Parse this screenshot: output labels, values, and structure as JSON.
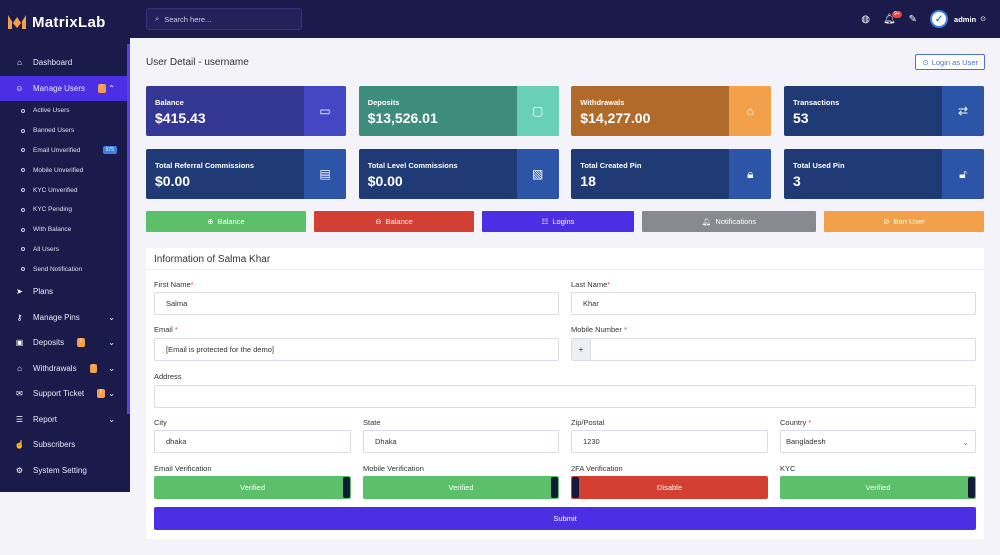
{
  "brand": {
    "name": "MatrixLab"
  },
  "search": {
    "placeholder": "Search here..."
  },
  "topbar": {
    "notification_count": "9+",
    "user_name": "admin"
  },
  "sidebar": {
    "items": [
      {
        "label": "Dashboard",
        "icon": "home-icon"
      },
      {
        "label": "Manage Users",
        "icon": "users-icon",
        "badge": "!",
        "active": true
      },
      {
        "label": "Plans",
        "icon": "send-icon"
      },
      {
        "label": "Manage Pins",
        "icon": "key-icon"
      },
      {
        "label": "Deposits",
        "icon": "wallet-icon",
        "badge": "!"
      },
      {
        "label": "Withdrawals",
        "icon": "bank-icon",
        "badge": "!"
      },
      {
        "label": "Support Ticket",
        "icon": "ticket-icon",
        "badge": "!"
      },
      {
        "label": "Report",
        "icon": "list-icon"
      },
      {
        "label": "Subscribers",
        "icon": "thumbs-up-icon"
      },
      {
        "label": "System Setting",
        "icon": "gear-icon"
      }
    ],
    "sub_items": [
      {
        "label": "Active Users"
      },
      {
        "label": "Banned Users"
      },
      {
        "label": "Email Unverified",
        "badge": "575"
      },
      {
        "label": "Mobile Unverified"
      },
      {
        "label": "KYC Unverified"
      },
      {
        "label": "KYC Pending"
      },
      {
        "label": "With Balance"
      },
      {
        "label": "All Users"
      },
      {
        "label": "Send Notification"
      }
    ]
  },
  "page": {
    "title": "User Detail - username",
    "login_as_label": "Login as User"
  },
  "stats": [
    {
      "label": "Balance",
      "value": "$415.43",
      "bg": "#343794",
      "icon_bg": "#4347c4",
      "icon": "money-icon"
    },
    {
      "label": "Deposits",
      "value": "$13,526.01",
      "bg": "#3e8c7c",
      "icon_bg": "#69cfb6",
      "icon": "wallet-icon"
    },
    {
      "label": "Withdrawals",
      "value": "$14,277.00",
      "bg": "#b06b2b",
      "icon_bg": "#f3a04a",
      "icon": "bank-icon"
    },
    {
      "label": "Transactions",
      "value": "53",
      "bg": "#1f3a75",
      "icon_bg": "#2c55a8",
      "icon": "exchange-icon"
    },
    {
      "label": "Total Referral Commissions",
      "value": "$0.00",
      "bg": "#1f3a75",
      "icon_bg": "#2c55a8",
      "icon": "card-icon"
    },
    {
      "label": "Total Level Commissions",
      "value": "$0.00",
      "bg": "#1f3a75",
      "icon_bg": "#2c55a8",
      "icon": "terminal-icon"
    },
    {
      "label": "Total Created Pin",
      "value": "18",
      "bg": "#1f3a75",
      "icon_bg": "#2c55a8",
      "icon": "lock-icon"
    },
    {
      "label": "Total Used Pin",
      "value": "3",
      "bg": "#1f3a75",
      "icon_bg": "#2c55a8",
      "icon": "unlock-icon"
    }
  ],
  "actions": [
    {
      "label": "Balance",
      "icon": "plus-circle-icon",
      "color": "#5cbf6a"
    },
    {
      "label": "Balance",
      "icon": "minus-circle-icon",
      "color": "#d43f33"
    },
    {
      "label": "Logins",
      "icon": "list-icon",
      "color": "#4c2fe5"
    },
    {
      "label": "Notifications",
      "icon": "bell-icon",
      "color": "#878a8f"
    },
    {
      "label": "Ban User",
      "icon": "ban-icon",
      "color": "#f3a04a"
    }
  ],
  "form": {
    "title": "Information of Salma Khar",
    "first_name": {
      "label": "First Name",
      "value": "Salma"
    },
    "last_name": {
      "label": "Last Name",
      "value": "Khar"
    },
    "email": {
      "label": "Email",
      "value": "[Email is protected for the demo]"
    },
    "mobile": {
      "label": "Mobile Number",
      "prefix": "+",
      "value": ""
    },
    "address": {
      "label": "Address",
      "value": ""
    },
    "city": {
      "label": "City",
      "value": "dhaka"
    },
    "state": {
      "label": "State",
      "value": "Dhaka"
    },
    "zip": {
      "label": "Zip/Postal",
      "value": "1230"
    },
    "country": {
      "label": "Country",
      "value": "Bangladesh"
    },
    "email_verification": {
      "label": "Email Verification",
      "value": "Verified"
    },
    "mobile_verification": {
      "label": "Mobile Verification",
      "value": "Verified"
    },
    "twofa_verification": {
      "label": "2FA Verification",
      "value": "Disable"
    },
    "kyc": {
      "label": "KYC",
      "value": "Verified"
    },
    "required_mark": "*",
    "submit_label": "Submit"
  }
}
